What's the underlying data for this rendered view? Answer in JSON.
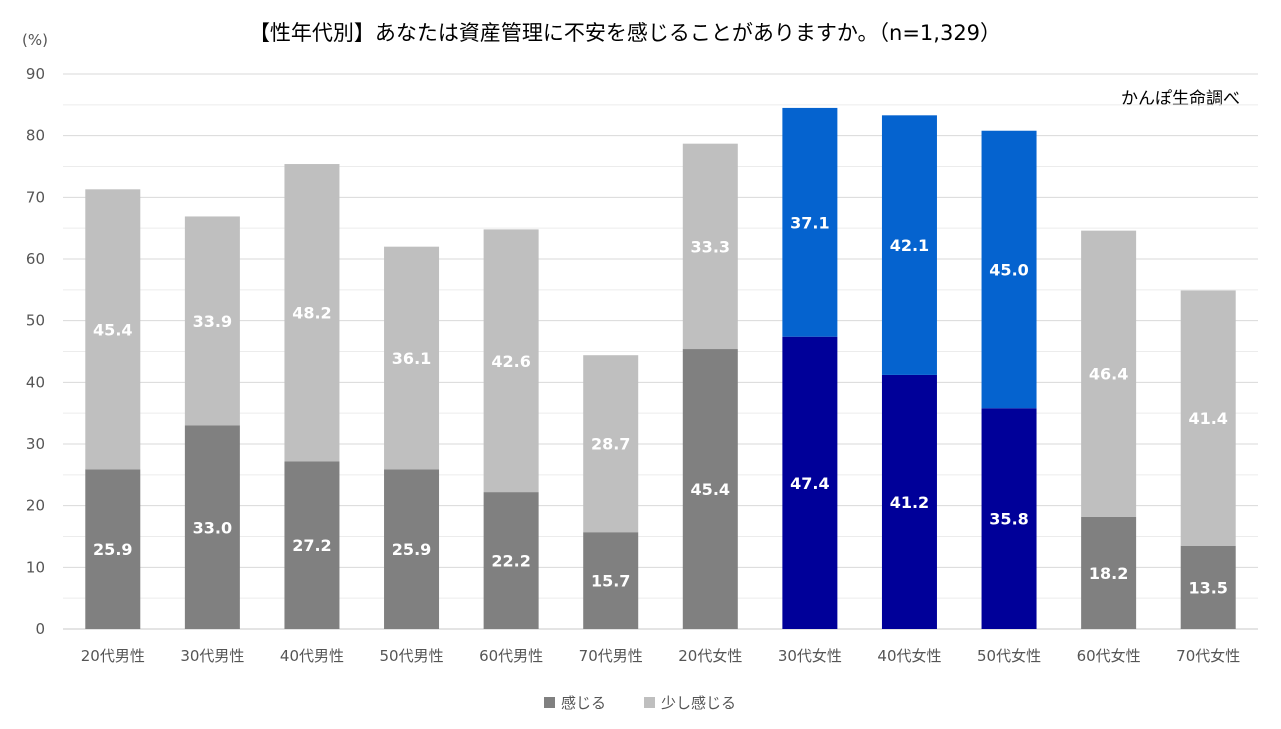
{
  "chart_data": {
    "type": "bar",
    "stacked": true,
    "title": "【性年代別】あなたは資産管理に不安を感じることがありますか。（n=1,329）",
    "ylabel": "(%)",
    "note": "かんぽ生命調べ",
    "ylim": [
      0,
      90
    ],
    "yticks": [
      0,
      10,
      20,
      30,
      40,
      50,
      60,
      70,
      80,
      90
    ],
    "grid": true,
    "legend_position": "bottom",
    "categories": [
      "20代男性",
      "30代男性",
      "40代男性",
      "50代男性",
      "60代男性",
      "70代男性",
      "20代女性",
      "30代女性",
      "40代女性",
      "50代女性",
      "60代女性",
      "70代女性"
    ],
    "series": [
      {
        "name": "感じる",
        "values": [
          25.9,
          33.0,
          27.2,
          25.9,
          22.2,
          15.7,
          45.4,
          47.4,
          41.2,
          35.8,
          18.2,
          13.5
        ]
      },
      {
        "name": "少し感じる",
        "values": [
          45.4,
          33.9,
          48.2,
          36.1,
          42.6,
          28.7,
          33.3,
          37.1,
          42.1,
          45.0,
          46.4,
          41.4
        ]
      }
    ],
    "colors": {
      "series_default": [
        "#808080",
        "#bfbfbf"
      ],
      "series_highlight": [
        "#000099",
        "#0563cf"
      ],
      "highlighted_categories": [
        "30代女性",
        "40代女性",
        "50代女性"
      ],
      "legend": [
        "#808080",
        "#bfbfbf"
      ]
    }
  }
}
